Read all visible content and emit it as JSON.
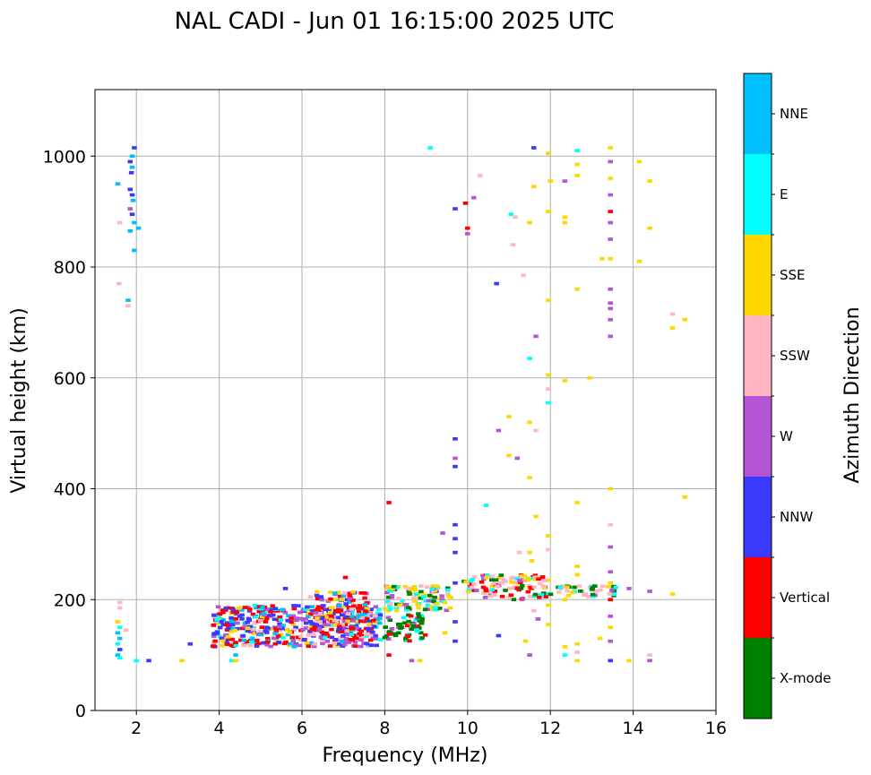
{
  "chart_data": {
    "type": "scatter",
    "title": "NAL CADI - Jun 01 16:15:00 2025 UTC",
    "xlabel": "Frequency (MHz)",
    "ylabel": "Virtual height (km)",
    "xlim": [
      1,
      16
    ],
    "ylim": [
      0,
      1120
    ],
    "xticks": [
      2,
      4,
      6,
      8,
      10,
      12,
      14,
      16
    ],
    "yticks": [
      0,
      200,
      400,
      600,
      800,
      1000
    ],
    "grid": true,
    "colorbar": {
      "title": "Azimuth Direction",
      "categories": [
        {
          "name": "X-mode",
          "color": "#008000"
        },
        {
          "name": "Vertical",
          "color": "#ff0000"
        },
        {
          "name": "NNW",
          "color": "#3a3aff"
        },
        {
          "name": "W",
          "color": "#b555d5"
        },
        {
          "name": "SSW",
          "color": "#ffb6c1"
        },
        {
          "name": "SSE",
          "color": "#ffd700"
        },
        {
          "name": "E",
          "color": "#00ffff"
        },
        {
          "name": "NNE",
          "color": "#00bfff"
        }
      ]
    },
    "point_width_mhz": 0.12,
    "point_height_km": 6,
    "scattered_points": [
      [
        1.95,
        1015,
        "NNW"
      ],
      [
        1.9,
        1000,
        "NNE"
      ],
      [
        1.85,
        990,
        "NNW"
      ],
      [
        1.9,
        980,
        "NNE"
      ],
      [
        1.88,
        970,
        "NNW"
      ],
      [
        1.55,
        950,
        "NNE"
      ],
      [
        1.85,
        940,
        "NNW"
      ],
      [
        1.9,
        930,
        "NNW"
      ],
      [
        1.92,
        920,
        "NNE"
      ],
      [
        1.85,
        905,
        "W"
      ],
      [
        1.9,
        895,
        "NNW"
      ],
      [
        1.6,
        880,
        "SSW"
      ],
      [
        1.95,
        880,
        "NNE"
      ],
      [
        2.05,
        870,
        "NNE"
      ],
      [
        1.85,
        865,
        "NNE"
      ],
      [
        1.95,
        830,
        "NNE"
      ],
      [
        1.58,
        770,
        "SSW"
      ],
      [
        1.8,
        740,
        "NNE"
      ],
      [
        1.8,
        730,
        "SSW"
      ],
      [
        1.6,
        195,
        "SSW"
      ],
      [
        1.6,
        185,
        "SSW"
      ],
      [
        1.55,
        160,
        "SSE"
      ],
      [
        1.6,
        150,
        "E"
      ],
      [
        1.55,
        140,
        "NNE"
      ],
      [
        1.6,
        130,
        "NNE"
      ],
      [
        1.55,
        120,
        "E"
      ],
      [
        1.6,
        110,
        "NNW"
      ],
      [
        1.55,
        100,
        "NNE"
      ],
      [
        1.6,
        95,
        "E"
      ],
      [
        1.75,
        145,
        "SSW"
      ],
      [
        2.0,
        90,
        "E"
      ],
      [
        2.3,
        90,
        "NNW"
      ],
      [
        3.1,
        90,
        "SSE"
      ],
      [
        3.3,
        120,
        "NNW"
      ],
      [
        3.9,
        165,
        "SSW"
      ],
      [
        4.1,
        155,
        "NNW"
      ],
      [
        4.3,
        90,
        "E"
      ],
      [
        4.4,
        100,
        "NNE"
      ],
      [
        4.4,
        90,
        "SSE"
      ],
      [
        5.6,
        220,
        "NNW"
      ],
      [
        6.2,
        205,
        "SSW"
      ],
      [
        7.05,
        240,
        "Vertical"
      ],
      [
        8.1,
        375,
        "Vertical"
      ],
      [
        8.1,
        100,
        "Vertical"
      ],
      [
        8.65,
        90,
        "W"
      ],
      [
        8.85,
        90,
        "SSE"
      ],
      [
        9.1,
        1015,
        "E"
      ],
      [
        9.4,
        320,
        "W"
      ],
      [
        9.45,
        140,
        "SSE"
      ],
      [
        9.7,
        490,
        "NNW"
      ],
      [
        9.7,
        455,
        "W"
      ],
      [
        9.7,
        440,
        "NNW"
      ],
      [
        9.7,
        335,
        "NNW"
      ],
      [
        9.7,
        310,
        "NNW"
      ],
      [
        9.7,
        285,
        "NNW"
      ],
      [
        9.7,
        230,
        "NNW"
      ],
      [
        9.7,
        160,
        "NNW"
      ],
      [
        9.7,
        125,
        "NNW"
      ],
      [
        9.7,
        905,
        "NNW"
      ],
      [
        9.95,
        915,
        "Vertical"
      ],
      [
        10.0,
        870,
        "Vertical"
      ],
      [
        10.0,
        860,
        "W"
      ],
      [
        10.15,
        925,
        "W"
      ],
      [
        10.3,
        965,
        "SSW"
      ],
      [
        10.45,
        370,
        "E"
      ],
      [
        10.7,
        770,
        "NNW"
      ],
      [
        10.75,
        505,
        "W"
      ],
      [
        10.75,
        135,
        "NNW"
      ],
      [
        11.0,
        530,
        "SSE"
      ],
      [
        11.0,
        460,
        "SSE"
      ],
      [
        11.05,
        895,
        "E"
      ],
      [
        11.1,
        840,
        "SSW"
      ],
      [
        11.15,
        890,
        "SSW"
      ],
      [
        11.2,
        455,
        "W"
      ],
      [
        11.25,
        285,
        "SSW"
      ],
      [
        11.35,
        785,
        "SSW"
      ],
      [
        11.4,
        125,
        "SSE"
      ],
      [
        11.5,
        880,
        "SSE"
      ],
      [
        11.5,
        635,
        "E"
      ],
      [
        11.5,
        520,
        "SSE"
      ],
      [
        11.5,
        420,
        "SSE"
      ],
      [
        11.5,
        285,
        "SSE"
      ],
      [
        11.55,
        270,
        "SSE"
      ],
      [
        11.5,
        100,
        "W"
      ],
      [
        11.6,
        1015,
        "NNW"
      ],
      [
        11.6,
        945,
        "SSE"
      ],
      [
        11.65,
        675,
        "W"
      ],
      [
        11.65,
        505,
        "SSW"
      ],
      [
        11.65,
        350,
        "SSE"
      ],
      [
        11.6,
        180,
        "SSW"
      ],
      [
        11.7,
        165,
        "W"
      ],
      [
        11.95,
        1005,
        "SSE"
      ],
      [
        12.0,
        955,
        "SSE"
      ],
      [
        11.95,
        900,
        "SSE"
      ],
      [
        11.95,
        740,
        "SSE"
      ],
      [
        11.95,
        605,
        "SSE"
      ],
      [
        11.95,
        580,
        "SSW"
      ],
      [
        11.95,
        555,
        "E"
      ],
      [
        11.95,
        315,
        "SSE"
      ],
      [
        11.95,
        290,
        "SSW"
      ],
      [
        11.95,
        235,
        "SSE"
      ],
      [
        11.95,
        210,
        "E"
      ],
      [
        11.95,
        190,
        "SSE"
      ],
      [
        11.95,
        155,
        "SSE"
      ],
      [
        12.35,
        955,
        "W"
      ],
      [
        12.35,
        890,
        "SSE"
      ],
      [
        12.35,
        880,
        "SSE"
      ],
      [
        12.35,
        595,
        "SSE"
      ],
      [
        12.35,
        200,
        "SSE"
      ],
      [
        12.35,
        115,
        "SSE"
      ],
      [
        12.35,
        100,
        "E"
      ],
      [
        12.65,
        1010,
        "E"
      ],
      [
        12.65,
        985,
        "SSE"
      ],
      [
        12.65,
        965,
        "SSE"
      ],
      [
        12.65,
        760,
        "SSE"
      ],
      [
        12.65,
        375,
        "SSE"
      ],
      [
        12.65,
        260,
        "SSE"
      ],
      [
        12.65,
        245,
        "SSE"
      ],
      [
        12.65,
        120,
        "SSE"
      ],
      [
        12.65,
        105,
        "SSW"
      ],
      [
        12.65,
        90,
        "SSE"
      ],
      [
        12.95,
        600,
        "SSE"
      ],
      [
        13.2,
        130,
        "SSE"
      ],
      [
        13.25,
        815,
        "SSE"
      ],
      [
        13.45,
        1015,
        "SSE"
      ],
      [
        13.45,
        990,
        "W"
      ],
      [
        13.45,
        960,
        "SSE"
      ],
      [
        13.45,
        930,
        "W"
      ],
      [
        13.45,
        900,
        "Vertical"
      ],
      [
        13.45,
        880,
        "W"
      ],
      [
        13.45,
        850,
        "W"
      ],
      [
        13.45,
        815,
        "SSE"
      ],
      [
        13.45,
        760,
        "W"
      ],
      [
        13.45,
        735,
        "W"
      ],
      [
        13.45,
        725,
        "W"
      ],
      [
        13.45,
        705,
        "W"
      ],
      [
        13.45,
        675,
        "W"
      ],
      [
        13.45,
        400,
        "SSE"
      ],
      [
        13.45,
        335,
        "SSW"
      ],
      [
        13.45,
        295,
        "W"
      ],
      [
        13.45,
        250,
        "W"
      ],
      [
        13.45,
        230,
        "SSE"
      ],
      [
        13.45,
        200,
        "Vertical"
      ],
      [
        13.45,
        170,
        "W"
      ],
      [
        13.45,
        150,
        "SSE"
      ],
      [
        13.45,
        125,
        "W"
      ],
      [
        13.45,
        90,
        "NNW"
      ],
      [
        13.9,
        220,
        "W"
      ],
      [
        13.9,
        90,
        "SSE"
      ],
      [
        14.15,
        990,
        "SSE"
      ],
      [
        14.15,
        810,
        "SSE"
      ],
      [
        14.4,
        955,
        "SSE"
      ],
      [
        14.4,
        870,
        "SSE"
      ],
      [
        14.4,
        215,
        "W"
      ],
      [
        14.4,
        100,
        "SSW"
      ],
      [
        14.4,
        90,
        "W"
      ],
      [
        14.95,
        715,
        "SSW"
      ],
      [
        14.95,
        690,
        "SSE"
      ],
      [
        15.25,
        705,
        "SSE"
      ],
      [
        15.25,
        385,
        "SSE"
      ],
      [
        14.95,
        210,
        "SSE"
      ]
    ],
    "clusters": [
      {
        "x_range": [
          3.85,
          7.9
        ],
        "y_range": [
          115,
          190
        ],
        "count": 520,
        "mix": [
          "Vertical",
          "Vertical",
          "Vertical",
          "NNW",
          "NNW",
          "NNW",
          "W",
          "W",
          "NNE",
          "E",
          "SSE",
          "SSW"
        ]
      },
      {
        "x_range": [
          6.3,
          7.6
        ],
        "y_range": [
          160,
          215
        ],
        "count": 90,
        "mix": [
          "Vertical",
          "Vertical",
          "NNW",
          "W",
          "NNE",
          "SSE",
          "SSW"
        ]
      },
      {
        "x_range": [
          8.0,
          9.0
        ],
        "y_range": [
          125,
          175
        ],
        "count": 60,
        "mix": [
          "X-mode",
          "X-mode",
          "X-mode",
          "Vertical",
          "E",
          "W"
        ]
      },
      {
        "x_range": [
          8.0,
          9.6
        ],
        "y_range": [
          180,
          225
        ],
        "count": 110,
        "mix": [
          "SSE",
          "SSE",
          "SSE",
          "E",
          "E",
          "SSW",
          "W",
          "X-mode"
        ]
      },
      {
        "x_range": [
          9.9,
          11.9
        ],
        "y_range": [
          200,
          245
        ],
        "count": 110,
        "mix": [
          "SSW",
          "SSW",
          "SSW",
          "Vertical",
          "Vertical",
          "E",
          "W",
          "X-mode",
          "SSE"
        ]
      },
      {
        "x_range": [
          12.0,
          13.6
        ],
        "y_range": [
          205,
          225
        ],
        "count": 45,
        "mix": [
          "SSW",
          "SSW",
          "W",
          "X-mode",
          "E",
          "SSE"
        ]
      }
    ]
  }
}
